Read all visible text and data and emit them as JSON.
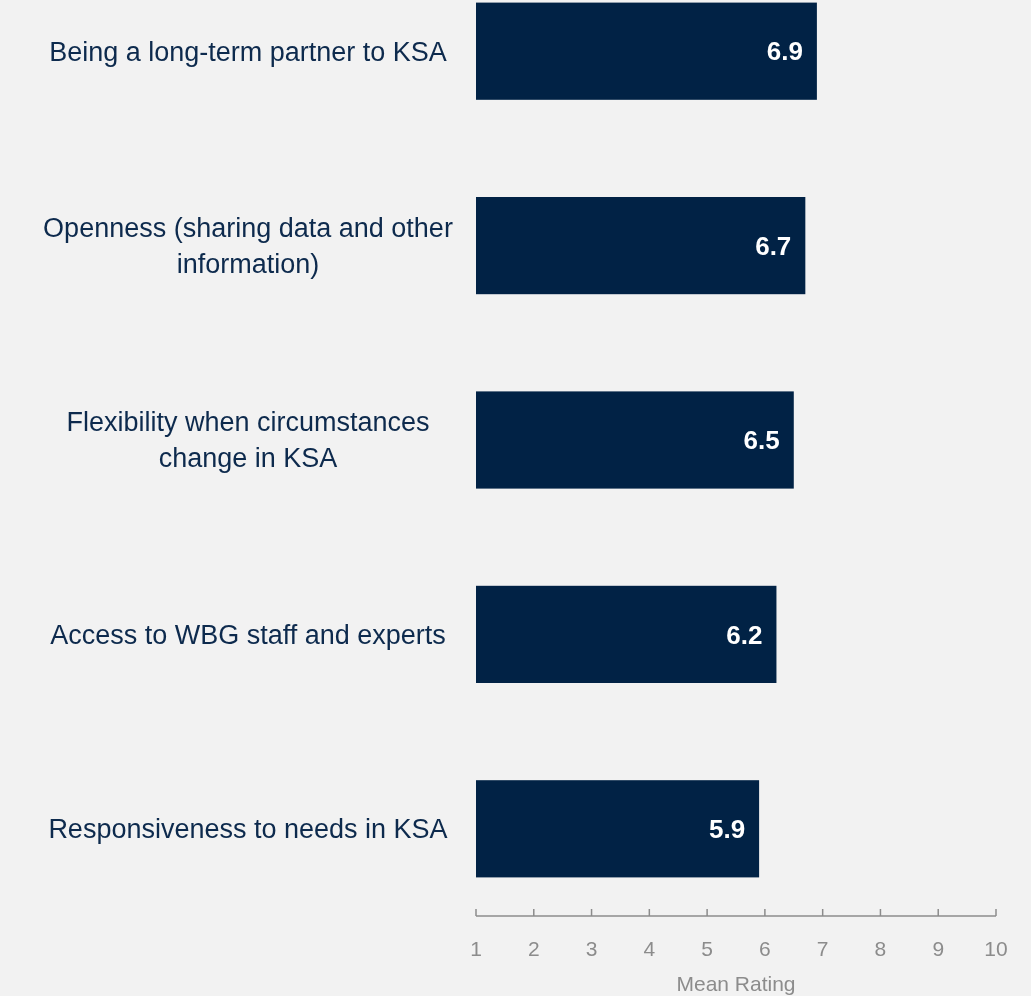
{
  "chart_data": {
    "type": "bar",
    "orientation": "horizontal",
    "categories": [
      "Being a long-term partner to KSA",
      "Openness (sharing data and other information)",
      "Flexibility when circumstances change in KSA",
      "Access to WBG staff and experts",
      "Responsiveness to needs in KSA"
    ],
    "values": [
      6.9,
      6.7,
      6.5,
      6.2,
      5.9
    ],
    "color": "#012245",
    "xlim": [
      1,
      10
    ],
    "xticks": [
      1,
      2,
      3,
      4,
      5,
      6,
      7,
      8,
      9,
      10
    ],
    "xlabel": "Mean Rating",
    "data_labels": true
  }
}
